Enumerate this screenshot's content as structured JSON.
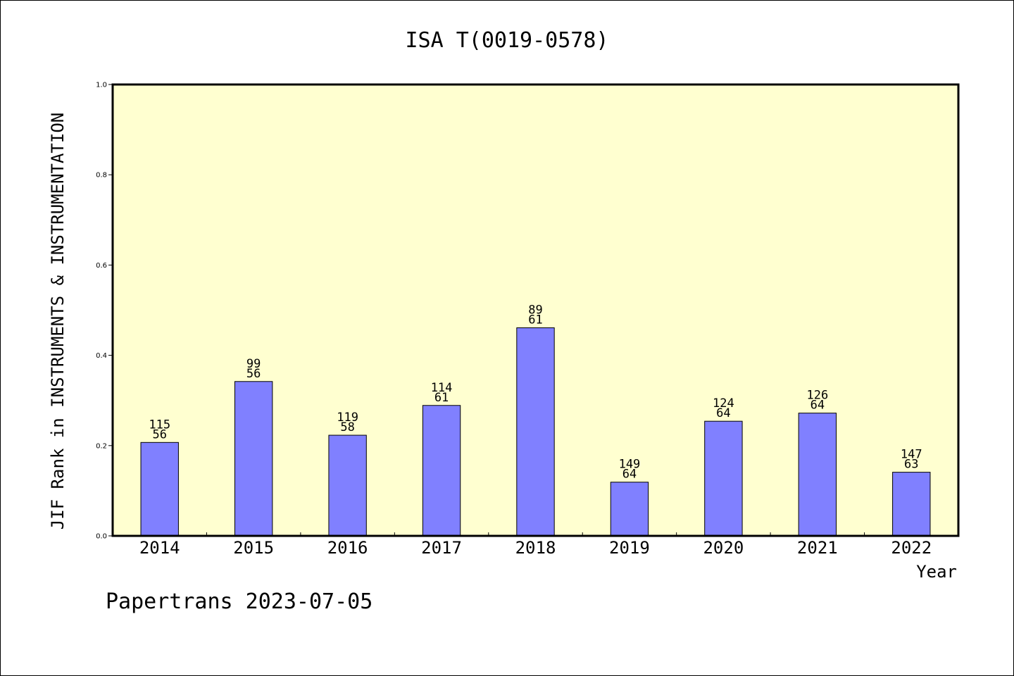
{
  "chart_data": {
    "type": "bar",
    "title": "ISA T(0019-0578)",
    "xlabel": "Year",
    "ylabel": "JIF Rank in INSTRUMENTS & INSTRUMENTATION",
    "footer": "Papertrans 2023-07-05",
    "ylim": [
      0,
      1
    ],
    "yticks": [
      "0.0",
      "0.2",
      "0.4",
      "0.6",
      "0.8",
      "1.0"
    ],
    "categories": [
      "2014",
      "2015",
      "2016",
      "2017",
      "2018",
      "2019",
      "2020",
      "2021",
      "2022"
    ],
    "values": [
      0.207,
      0.342,
      0.223,
      0.289,
      0.461,
      0.119,
      0.254,
      0.272,
      0.141
    ],
    "rank_totals": [
      "115",
      "99",
      "119",
      "114",
      "89",
      "149",
      "124",
      "126",
      "147"
    ],
    "rank_positions": [
      "56",
      "56",
      "58",
      "61",
      "61",
      "64",
      "64",
      "64",
      "63"
    ],
    "grid": false,
    "legend": "none",
    "colors": {
      "bar": "#8080ff",
      "plot_background": "#ffffd0",
      "axis": "#000000"
    }
  }
}
